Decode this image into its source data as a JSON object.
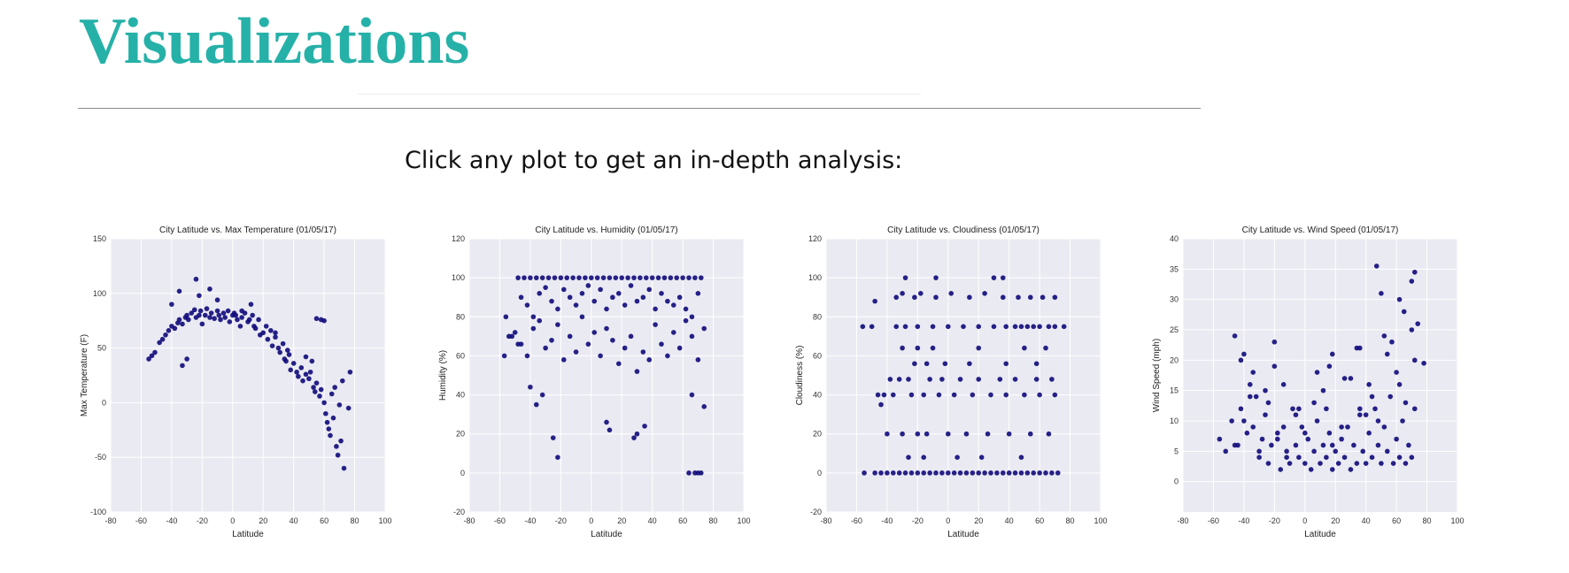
{
  "page": {
    "title": "Visualizations",
    "subtitle": "Click any plot to get an in-depth analysis:"
  },
  "colors": {
    "accent": "#26b1a8",
    "point": "#0f0a7a",
    "panel": "#eaeaf2",
    "grid": "#ffffff"
  },
  "chart_data": [
    {
      "type": "scatter",
      "title": "City Latitude vs. Max Temperature (01/05/17)",
      "xlabel": "Latitude",
      "ylabel": "Max Temperature (F)",
      "xlim": [
        -80,
        100
      ],
      "ylim": [
        -100,
        150
      ],
      "xticks": [
        -80,
        -60,
        -40,
        -20,
        0,
        20,
        40,
        60,
        80,
        100
      ],
      "yticks": [
        -100,
        -50,
        0,
        50,
        100,
        150
      ],
      "grid": true,
      "series": [
        {
          "x": [
            -55,
            -53,
            -51,
            -48,
            -46,
            -44,
            -42,
            -40,
            -38,
            -36,
            -35,
            -33,
            -31,
            -30,
            -29,
            -27,
            -25,
            -24,
            -22,
            -21,
            -20,
            -18,
            -17,
            -15,
            -14,
            -12,
            -10,
            -9,
            -8,
            -6,
            -5,
            -3,
            -2,
            0,
            1,
            3,
            5,
            6,
            8,
            10,
            11,
            13,
            14,
            15,
            17,
            18,
            20,
            22,
            23,
            25,
            26,
            28,
            30,
            31,
            33,
            34,
            35,
            37,
            38,
            40,
            42,
            43,
            45,
            46,
            48,
            50,
            51,
            53,
            54,
            55,
            57,
            58,
            60,
            61,
            62,
            63,
            64,
            65,
            66,
            67,
            68,
            69,
            70,
            71,
            72,
            73,
            77,
            76,
            55,
            58,
            60,
            48,
            52,
            36,
            -22,
            -15,
            -10,
            -33,
            -30,
            -35,
            -40,
            -24,
            6,
            12,
            28,
            2
          ],
          "y": [
            40,
            43,
            46,
            55,
            58,
            62,
            66,
            70,
            68,
            73,
            76,
            72,
            78,
            80,
            76,
            82,
            85,
            78,
            80,
            84,
            72,
            80,
            86,
            78,
            82,
            77,
            84,
            80,
            76,
            82,
            78,
            84,
            74,
            80,
            82,
            76,
            70,
            78,
            82,
            74,
            76,
            80,
            70,
            68,
            76,
            62,
            64,
            70,
            58,
            66,
            52,
            60,
            50,
            46,
            54,
            40,
            38,
            44,
            30,
            36,
            28,
            24,
            32,
            20,
            26,
            22,
            28,
            14,
            10,
            18,
            6,
            12,
            0,
            -10,
            -18,
            -24,
            -30,
            8,
            -14,
            14,
            -40,
            -48,
            -2,
            -35,
            20,
            -60,
            28,
            -5,
            77,
            76,
            75,
            42,
            38,
            48,
            98,
            104,
            94,
            34,
            40,
            102,
            90,
            113,
            84,
            90,
            64,
            80
          ]
        }
      ]
    },
    {
      "type": "scatter",
      "title": "City Latitude vs. Humidity (01/05/17)",
      "xlabel": "Latitude",
      "ylabel": "Humidity (%)",
      "xlim": [
        -80,
        100
      ],
      "ylim": [
        -20,
        120
      ],
      "xticks": [
        -80,
        -60,
        -40,
        -20,
        0,
        20,
        40,
        60,
        80,
        100
      ],
      "yticks": [
        -20,
        0,
        20,
        40,
        60,
        80,
        100,
        120
      ],
      "grid": true,
      "series": [
        {
          "x": [
            -48,
            -44,
            -40,
            -36,
            -32,
            -28,
            -24,
            -20,
            -16,
            -12,
            -8,
            -4,
            0,
            4,
            8,
            12,
            16,
            20,
            24,
            28,
            32,
            36,
            40,
            44,
            48,
            52,
            56,
            60,
            64,
            68,
            72,
            -46,
            -42,
            -38,
            -34,
            -30,
            -26,
            -22,
            -18,
            -14,
            -10,
            -6,
            -2,
            2,
            6,
            10,
            14,
            18,
            22,
            26,
            30,
            34,
            38,
            42,
            46,
            50,
            54,
            58,
            62,
            66,
            70,
            -56,
            -52,
            -50,
            -46,
            -42,
            -38,
            -34,
            -30,
            -26,
            -22,
            -18,
            -14,
            -10,
            -6,
            -2,
            2,
            6,
            10,
            14,
            18,
            22,
            26,
            30,
            34,
            38,
            42,
            46,
            50,
            54,
            58,
            62,
            66,
            70,
            74,
            -36,
            -40,
            -32,
            -25,
            -22,
            10,
            12,
            28,
            30,
            35,
            64,
            68,
            70,
            72,
            66,
            74,
            -54,
            -57,
            -48
          ],
          "y": [
            100,
            100,
            100,
            100,
            100,
            100,
            100,
            100,
            100,
            100,
            100,
            100,
            100,
            100,
            100,
            100,
            100,
            100,
            100,
            100,
            100,
            100,
            100,
            100,
            100,
            100,
            100,
            100,
            100,
            100,
            100,
            90,
            86,
            80,
            92,
            95,
            88,
            84,
            94,
            90,
            86,
            92,
            96,
            88,
            94,
            84,
            90,
            92,
            86,
            96,
            88,
            90,
            94,
            84,
            92,
            88,
            86,
            90,
            84,
            80,
            92,
            80,
            70,
            72,
            66,
            60,
            74,
            78,
            64,
            68,
            76,
            58,
            70,
            62,
            80,
            66,
            72,
            60,
            74,
            68,
            56,
            64,
            70,
            52,
            62,
            58,
            76,
            66,
            60,
            72,
            64,
            78,
            70,
            58,
            74,
            35,
            44,
            40,
            18,
            8,
            26,
            22,
            18,
            20,
            24,
            0,
            0,
            0,
            0,
            40,
            34,
            70,
            60,
            66
          ]
        }
      ]
    },
    {
      "type": "scatter",
      "title": "City Latitude vs. Cloudiness (01/05/17)",
      "xlabel": "Latitude",
      "ylabel": "Cloudiness (%)",
      "xlim": [
        -80,
        100
      ],
      "ylim": [
        -20,
        120
      ],
      "xticks": [
        -80,
        -60,
        -40,
        -20,
        0,
        20,
        40,
        60,
        80,
        100
      ],
      "yticks": [
        -20,
        0,
        20,
        40,
        60,
        80,
        100,
        120
      ],
      "grid": true,
      "series": [
        {
          "x": [
            -55,
            -48,
            -44,
            -40,
            -36,
            -32,
            -28,
            -24,
            -20,
            -16,
            -12,
            -8,
            -4,
            0,
            4,
            8,
            12,
            16,
            20,
            24,
            28,
            32,
            36,
            40,
            44,
            48,
            52,
            56,
            60,
            64,
            68,
            72,
            -56,
            -50,
            -34,
            -28,
            -20,
            -10,
            0,
            10,
            20,
            30,
            38,
            44,
            48,
            52,
            56,
            60,
            66,
            70,
            76,
            -34,
            -30,
            -22,
            -18,
            -8,
            2,
            14,
            24,
            36,
            46,
            54,
            62,
            70,
            -46,
            -42,
            -36,
            -24,
            -16,
            -6,
            4,
            16,
            28,
            38,
            50,
            60,
            70,
            -40,
            -30,
            -20,
            -14,
            0,
            12,
            26,
            40,
            54,
            66,
            -38,
            -32,
            -26,
            -12,
            -4,
            8,
            20,
            34,
            44,
            58,
            68,
            -22,
            -14,
            -2,
            14,
            38,
            58,
            -30,
            -20,
            -10,
            20,
            50,
            64,
            -26,
            -16,
            6,
            22,
            48,
            -48,
            -44,
            -28,
            -8,
            30,
            36
          ],
          "y": [
            0,
            0,
            0,
            0,
            0,
            0,
            0,
            0,
            0,
            0,
            0,
            0,
            0,
            0,
            0,
            0,
            0,
            0,
            0,
            0,
            0,
            0,
            0,
            0,
            0,
            0,
            0,
            0,
            0,
            0,
            0,
            0,
            75,
            75,
            75,
            75,
            75,
            75,
            75,
            75,
            75,
            75,
            75,
            75,
            75,
            75,
            75,
            75,
            75,
            75,
            75,
            90,
            92,
            90,
            92,
            90,
            92,
            90,
            92,
            90,
            90,
            90,
            90,
            90,
            40,
            40,
            40,
            40,
            40,
            40,
            40,
            40,
            40,
            40,
            40,
            40,
            40,
            20,
            20,
            20,
            20,
            20,
            20,
            20,
            20,
            20,
            20,
            48,
            48,
            48,
            48,
            48,
            48,
            48,
            48,
            48,
            48,
            48,
            56,
            56,
            56,
            56,
            56,
            56,
            64,
            64,
            64,
            64,
            64,
            64,
            8,
            8,
            8,
            8,
            8,
            88,
            35,
            100,
            100,
            100,
            100
          ]
        }
      ]
    },
    {
      "type": "scatter",
      "title": "City Latitude vs. Wind Speed (01/05/17)",
      "xlabel": "Latitude",
      "ylabel": "Wind Speed (mph)",
      "xlim": [
        -80,
        100
      ],
      "ylim": [
        -5,
        40
      ],
      "xticks": [
        -80,
        -60,
        -40,
        -20,
        0,
        20,
        40,
        60,
        80,
        100
      ],
      "yticks": [
        0,
        5,
        10,
        15,
        20,
        25,
        30,
        35,
        40
      ],
      "grid": true,
      "series": [
        {
          "x": [
            -56,
            -52,
            -48,
            -46,
            -44,
            -42,
            -40,
            -38,
            -36,
            -34,
            -32,
            -30,
            -28,
            -26,
            -24,
            -22,
            -20,
            -18,
            -16,
            -14,
            -12,
            -10,
            -8,
            -6,
            -4,
            -2,
            0,
            2,
            4,
            6,
            8,
            10,
            12,
            14,
            16,
            18,
            20,
            22,
            24,
            26,
            28,
            30,
            32,
            34,
            36,
            38,
            40,
            42,
            44,
            46,
            48,
            50,
            52,
            54,
            56,
            58,
            60,
            62,
            64,
            66,
            68,
            70,
            72,
            -40,
            -36,
            -30,
            -24,
            -18,
            -12,
            -6,
            0,
            6,
            12,
            18,
            24,
            30,
            36,
            42,
            48,
            54,
            60,
            66,
            72,
            -34,
            -26,
            -14,
            -4,
            8,
            16,
            26,
            34,
            44,
            52,
            62,
            70,
            -46,
            -42,
            -20,
            14,
            18,
            36,
            40,
            47,
            50,
            57,
            62,
            65,
            70,
            72,
            74,
            78
          ],
          "y": [
            7,
            5,
            10,
            24,
            6,
            12,
            21,
            8,
            16,
            9,
            14,
            4,
            7,
            11,
            3,
            6,
            19,
            8,
            2,
            9,
            5,
            3,
            12,
            6,
            4,
            9,
            3,
            7,
            2,
            5,
            10,
            3,
            6,
            4,
            8,
            2,
            5,
            3,
            7,
            4,
            9,
            2,
            6,
            3,
            11,
            5,
            3,
            8,
            4,
            12,
            6,
            3,
            9,
            5,
            14,
            3,
            7,
            4,
            10,
            3,
            6,
            4,
            12,
            10,
            14,
            5,
            13,
            7,
            4,
            11,
            8,
            13,
            15,
            6,
            9,
            17,
            12,
            16,
            10,
            21,
            18,
            13,
            20,
            18,
            15,
            16,
            12,
            18,
            19,
            17,
            22,
            14,
            24,
            16,
            25,
            6,
            20,
            23,
            12,
            21,
            22,
            11,
            35.5,
            31,
            23,
            30,
            28,
            33,
            34.5,
            26,
            19.5
          ]
        }
      ]
    }
  ]
}
